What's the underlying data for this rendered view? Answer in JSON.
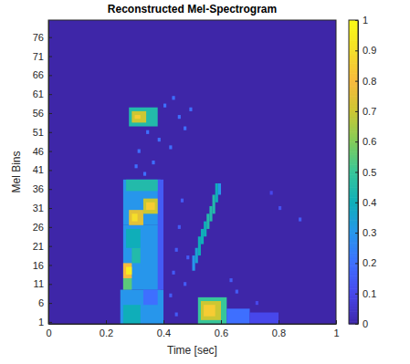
{
  "chart_data": {
    "type": "heatmap",
    "title": "Reconstructed Mel-Spectrogram",
    "x_label": "Time [sec]",
    "y_label": "Mel Bins",
    "xlim": [
      0,
      1
    ],
    "xticks": [
      0,
      0.2,
      0.4,
      0.6,
      0.8,
      1
    ],
    "ylim": [
      0.5,
      80.5
    ],
    "yticks": [
      1,
      6,
      11,
      16,
      21,
      26,
      31,
      36,
      41,
      46,
      51,
      56,
      61,
      66,
      71,
      76
    ],
    "colorbar_lim": [
      0,
      1
    ],
    "colorbar_ticks": [
      0,
      0.1,
      0.2,
      0.3,
      0.4,
      0.5,
      0.6,
      0.7,
      0.8,
      0.9,
      1
    ],
    "cells": [
      {
        "t": [
          0.25,
          0.4
        ],
        "bins": [
          1,
          9
        ],
        "value": 0.3
      },
      {
        "t": [
          0.26,
          0.39
        ],
        "bins": [
          10,
          26
        ],
        "value": 0.3
      },
      {
        "t": [
          0.26,
          0.39
        ],
        "bins": [
          27,
          38
        ],
        "value": 0.3
      },
      {
        "t": [
          0.26,
          0.32
        ],
        "bins": [
          1,
          5
        ],
        "value": 0.4
      },
      {
        "t": [
          0.33,
          0.38
        ],
        "bins": [
          6,
          9
        ],
        "value": 0.2
      },
      {
        "t": [
          0.38,
          0.4
        ],
        "bins": [
          10,
          38
        ],
        "value": 0.15
      },
      {
        "t": [
          0.26,
          0.29
        ],
        "bins": [
          10,
          12
        ],
        "value": 0.55
      },
      {
        "t": [
          0.26,
          0.29
        ],
        "bins": [
          13,
          16
        ],
        "value": 0.8
      },
      {
        "t": [
          0.27,
          0.29
        ],
        "bins": [
          14,
          15
        ],
        "value": 0.95
      },
      {
        "t": [
          0.29,
          0.32
        ],
        "bins": [
          17,
          20
        ],
        "value": 0.45
      },
      {
        "t": [
          0.27,
          0.32
        ],
        "bins": [
          21,
          25
        ],
        "value": 0.4
      },
      {
        "t": [
          0.28,
          0.33
        ],
        "bins": [
          27,
          30
        ],
        "value": 0.75
      },
      {
        "t": [
          0.29,
          0.31
        ],
        "bins": [
          28,
          29
        ],
        "value": 0.9
      },
      {
        "t": [
          0.33,
          0.38
        ],
        "bins": [
          30,
          33
        ],
        "value": 0.7
      },
      {
        "t": [
          0.34,
          0.37
        ],
        "bins": [
          31,
          32
        ],
        "value": 0.85
      },
      {
        "t": [
          0.27,
          0.38
        ],
        "bins": [
          36,
          38
        ],
        "value": 0.45
      },
      {
        "t": [
          0.28,
          0.38
        ],
        "bins": [
          53,
          57
        ],
        "value": 0.45
      },
      {
        "t": [
          0.29,
          0.34
        ],
        "bins": [
          54,
          56
        ],
        "value": 0.7
      },
      {
        "t": [
          0.3,
          0.32
        ],
        "bins": [
          55,
          55
        ],
        "value": 0.85
      },
      {
        "t": [
          0.3,
          0.31
        ],
        "bins": [
          42,
          42
        ],
        "value": 0.2
      },
      {
        "t": [
          0.31,
          0.32
        ],
        "bins": [
          46,
          46
        ],
        "value": 0.2
      },
      {
        "t": [
          0.33,
          0.34
        ],
        "bins": [
          40,
          40
        ],
        "value": 0.2
      },
      {
        "t": [
          0.34,
          0.35
        ],
        "bins": [
          51,
          51
        ],
        "value": 0.2
      },
      {
        "t": [
          0.36,
          0.37
        ],
        "bins": [
          43,
          43
        ],
        "value": 0.2
      },
      {
        "t": [
          0.38,
          0.39
        ],
        "bins": [
          49,
          49
        ],
        "value": 0.2
      },
      {
        "t": [
          0.4,
          0.41
        ],
        "bins": [
          58,
          58
        ],
        "value": 0.2
      },
      {
        "t": [
          0.42,
          0.43
        ],
        "bins": [
          47,
          47
        ],
        "value": 0.2
      },
      {
        "t": [
          0.43,
          0.44
        ],
        "bins": [
          60,
          60
        ],
        "value": 0.2
      },
      {
        "t": [
          0.45,
          0.46
        ],
        "bins": [
          55,
          55
        ],
        "value": 0.2
      },
      {
        "t": [
          0.47,
          0.48
        ],
        "bins": [
          52,
          52
        ],
        "value": 0.2
      },
      {
        "t": [
          0.49,
          0.5
        ],
        "bins": [
          57,
          57
        ],
        "value": 0.2
      },
      {
        "t": [
          0.42,
          0.43
        ],
        "bins": [
          8,
          8
        ],
        "value": 0.15
      },
      {
        "t": [
          0.43,
          0.44
        ],
        "bins": [
          14,
          14
        ],
        "value": 0.15
      },
      {
        "t": [
          0.44,
          0.45
        ],
        "bins": [
          20,
          20
        ],
        "value": 0.15
      },
      {
        "t": [
          0.45,
          0.46
        ],
        "bins": [
          26,
          26
        ],
        "value": 0.15
      },
      {
        "t": [
          0.46,
          0.47
        ],
        "bins": [
          33,
          33
        ],
        "value": 0.15
      },
      {
        "t": [
          0.47,
          0.48
        ],
        "bins": [
          11,
          11
        ],
        "value": 0.15
      },
      {
        "t": [
          0.48,
          0.49
        ],
        "bins": [
          18,
          18
        ],
        "value": 0.15
      },
      {
        "t": [
          0.44,
          0.45
        ],
        "bins": [
          3,
          3
        ],
        "value": 0.15
      },
      {
        "t": [
          0.5,
          0.51
        ],
        "bins": [
          15,
          18
        ],
        "value": 0.3
      },
      {
        "t": [
          0.51,
          0.52
        ],
        "bins": [
          17,
          20
        ],
        "value": 0.35
      },
      {
        "t": [
          0.52,
          0.53
        ],
        "bins": [
          19,
          23
        ],
        "value": 0.4
      },
      {
        "t": [
          0.53,
          0.54
        ],
        "bins": [
          22,
          25
        ],
        "value": 0.4
      },
      {
        "t": [
          0.54,
          0.55
        ],
        "bins": [
          24,
          27
        ],
        "value": 0.4
      },
      {
        "t": [
          0.55,
          0.56
        ],
        "bins": [
          26,
          29
        ],
        "value": 0.45
      },
      {
        "t": [
          0.56,
          0.57
        ],
        "bins": [
          28,
          31
        ],
        "value": 0.45
      },
      {
        "t": [
          0.57,
          0.58
        ],
        "bins": [
          30,
          34
        ],
        "value": 0.45
      },
      {
        "t": [
          0.58,
          0.59
        ],
        "bins": [
          33,
          37
        ],
        "value": 0.4
      },
      {
        "t": [
          0.59,
          0.6
        ],
        "bins": [
          35,
          37
        ],
        "value": 0.3
      },
      {
        "t": [
          0.52,
          0.62
        ],
        "bins": [
          1,
          7
        ],
        "value": 0.5
      },
      {
        "t": [
          0.53,
          0.6
        ],
        "bins": [
          2,
          6
        ],
        "value": 0.7
      },
      {
        "t": [
          0.54,
          0.58
        ],
        "bins": [
          3,
          5
        ],
        "value": 0.85
      },
      {
        "t": [
          0.62,
          0.7
        ],
        "bins": [
          1,
          4
        ],
        "value": 0.2
      },
      {
        "t": [
          0.7,
          0.8
        ],
        "bins": [
          1,
          3
        ],
        "value": 0.1
      },
      {
        "t": [
          0.63,
          0.64
        ],
        "bins": [
          12,
          12
        ],
        "value": 0.15
      },
      {
        "t": [
          0.65,
          0.66
        ],
        "bins": [
          9,
          9
        ],
        "value": 0.15
      },
      {
        "t": [
          0.72,
          0.73
        ],
        "bins": [
          6,
          6
        ],
        "value": 0.1
      },
      {
        "t": [
          0.77,
          0.78
        ],
        "bins": [
          35,
          35
        ],
        "value": 0.1
      },
      {
        "t": [
          0.8,
          0.81
        ],
        "bins": [
          31,
          31
        ],
        "value": 0.12
      },
      {
        "t": [
          0.87,
          0.88
        ],
        "bins": [
          28,
          28
        ],
        "value": 0.15
      }
    ]
  }
}
